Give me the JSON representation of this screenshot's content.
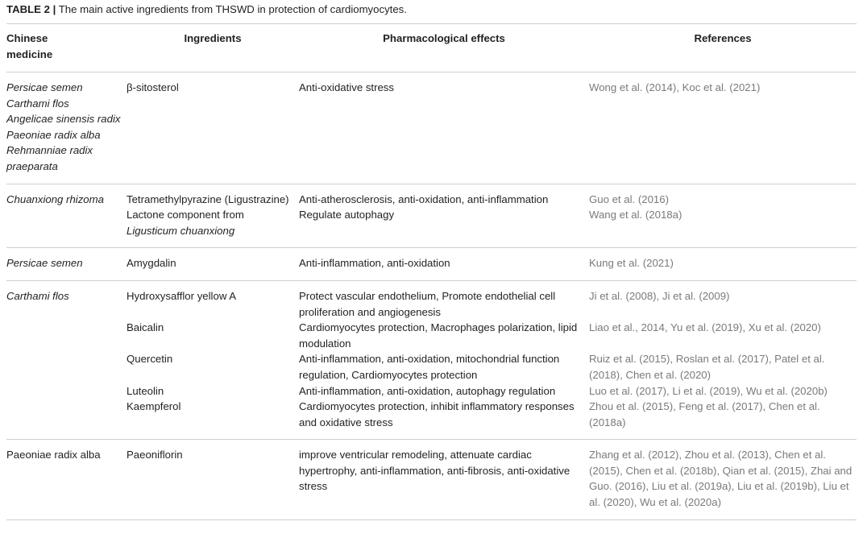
{
  "caption": {
    "label": "TABLE 2 |",
    "text": " The main active ingredients from THSWD in protection of cardiomyocytes."
  },
  "headers": [
    "Chinese medicine",
    "Ingredients",
    "Pharmacological effects",
    "References"
  ],
  "colors": {
    "text": "#231f20",
    "references": "#7a7a7a",
    "rule": "#cfcfcf"
  },
  "groups": [
    {
      "medicine": [
        "Persicae semen",
        "Carthami flos",
        "Angelicae sinensis radix",
        "Paeoniae radix alba",
        "Rehmanniae radix praeparata"
      ],
      "italic": true,
      "items": [
        {
          "ingredient": "β-sitosterol",
          "effects": "Anti-oxidative stress",
          "references": "Wong et al. (2014), Koc et al. (2021)"
        }
      ]
    },
    {
      "medicine": [
        "Chuanxiong rhizoma"
      ],
      "italic": true,
      "items": [
        {
          "ingredient": "Tetramethylpyrazine (Ligustrazine)",
          "effects": "Anti-atherosclerosis, anti-oxidation, anti-inflammation",
          "references": "Guo et al. (2016)"
        },
        {
          "ingredient": "Lactone component from",
          "ingredient_italic": "Ligusticum chuanxiong",
          "effects": "Regulate autophagy",
          "references": "Wang et al. (2018a)"
        }
      ]
    },
    {
      "medicine": [
        "Persicae semen"
      ],
      "italic": true,
      "items": [
        {
          "ingredient": "Amygdalin",
          "effects": "Anti-inflammation, anti-oxidation",
          "references": "Kung et al. (2021)"
        }
      ]
    },
    {
      "medicine": [
        "Carthami flos"
      ],
      "italic": true,
      "items": [
        {
          "ingredient": "Hydroxysafflor yellow A",
          "effects": "Protect vascular endothelium, Promote endothelial cell proliferation and angiogenesis",
          "references": "Ji et al. (2008), Ji et al. (2009)"
        },
        {
          "ingredient": "Baicalin",
          "effects": "Cardiomyocytes protection, Macrophages polarization, lipid modulation",
          "references": "Liao et al., 2014, Yu et al. (2019), Xu et al. (2020)"
        },
        {
          "ingredient": "Quercetin",
          "effects": "Anti-inflammation, anti-oxidation, mitochondrial function regulation, Cardiomyocytes protection",
          "references": "Ruiz et al. (2015), Roslan et al. (2017), Patel et al. (2018), Chen et al. (2020)"
        },
        {
          "ingredient": "Luteolin",
          "effects": "Anti-inflammation, anti-oxidation, autophagy regulation",
          "references": "Luo et al. (2017), Li et al. (2019), Wu et al. (2020b)"
        },
        {
          "ingredient": "Kaempferol",
          "effects": "Cardiomyocytes protection, inhibit inflammatory responses and oxidative stress",
          "references": "Zhou et al. (2015), Feng et al. (2017), Chen et al. (2018a)"
        }
      ]
    },
    {
      "medicine": [
        "Paeoniae radix alba"
      ],
      "italic": false,
      "items": [
        {
          "ingredient": "Paeoniflorin",
          "effects": "improve ventricular remodeling, attenuate cardiac hypertrophy, anti-inflammation, anti-fibrosis, anti-oxidative stress",
          "references": "Zhang et al. (2012), Zhou et al. (2013), Chen et al. (2015), Chen et al. (2018b), Qian et al. (2015), Zhai and Guo. (2016), Liu et al. (2019a), Liu et al. (2019b), Liu et al. (2020), Wu et al. (2020a)"
        }
      ]
    }
  ]
}
